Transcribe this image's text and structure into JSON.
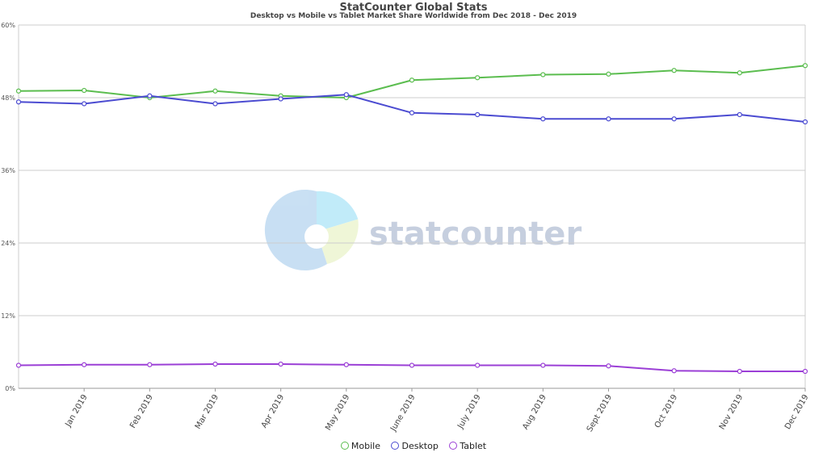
{
  "header": {
    "title": "StatCounter Global Stats",
    "subtitle": "Desktop vs Mobile vs Tablet Market Share Worldwide from Dec 2018 - Dec 2019"
  },
  "watermark": {
    "text": "statcounter"
  },
  "colors": {
    "mobile": "#5bbd4f",
    "desktop": "#4b4bd1",
    "tablet": "#9b3fd6",
    "grid": "#cccccc"
  },
  "chart_data": {
    "type": "line",
    "categories": [
      "",
      "Jan 2019",
      "Feb 2019",
      "Mar 2019",
      "Apr 2019",
      "May 2019",
      "June 2019",
      "July 2019",
      "Aug 2019",
      "Sept 2019",
      "Oct 2019",
      "Nov 2019",
      "Dec 2019"
    ],
    "y_ticks": [
      "0%",
      "12%",
      "24%",
      "36%",
      "48%",
      "60%"
    ],
    "ylim": [
      0,
      60
    ],
    "grid": true,
    "legend_position": "bottom",
    "series": [
      {
        "name": "Mobile",
        "color": "#5bbd4f",
        "values": [
          49.1,
          49.2,
          48.0,
          49.1,
          48.3,
          48.0,
          50.9,
          51.3,
          51.8,
          51.9,
          52.5,
          52.1,
          53.3
        ]
      },
      {
        "name": "Desktop",
        "color": "#4b4bd1",
        "values": [
          47.3,
          47.0,
          48.3,
          47.0,
          47.8,
          48.5,
          45.5,
          45.2,
          44.5,
          44.5,
          44.5,
          45.2,
          44.0
        ]
      },
      {
        "name": "Tablet",
        "color": "#9b3fd6",
        "values": [
          3.8,
          3.9,
          3.9,
          4.0,
          4.0,
          3.9,
          3.8,
          3.8,
          3.8,
          3.7,
          2.9,
          2.8,
          2.8
        ]
      }
    ]
  }
}
